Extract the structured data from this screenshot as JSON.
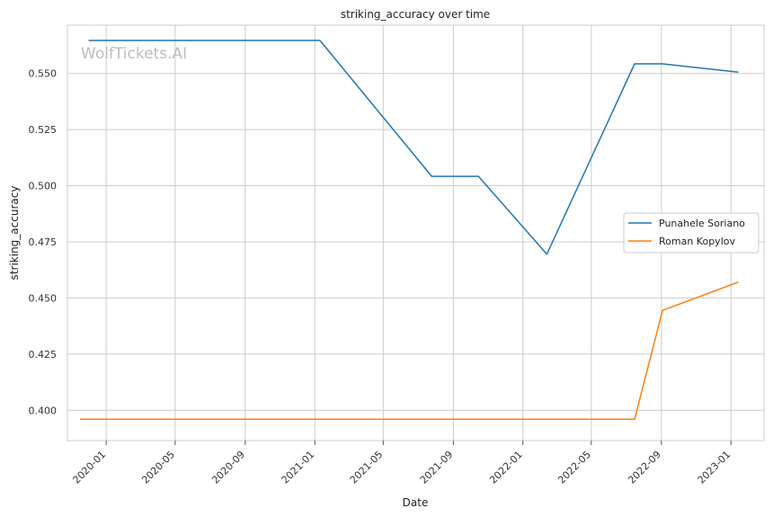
{
  "chart_data": {
    "type": "line",
    "title": "striking_accuracy over time",
    "xlabel": "Date",
    "ylabel": "striking_accuracy",
    "watermark": "WolfTickets.AI",
    "x_ticks": [
      "2020-01",
      "2020-05",
      "2020-09",
      "2021-01",
      "2021-05",
      "2021-09",
      "2022-01",
      "2022-05",
      "2022-09",
      "2023-01"
    ],
    "y_ticks": [
      "0.400",
      "0.425",
      "0.450",
      "0.475",
      "0.500",
      "0.525",
      "0.550"
    ],
    "xlim": [
      "2019-10-25",
      "2023-02-28"
    ],
    "ylim": [
      0.3865,
      0.5715
    ],
    "grid": true,
    "legend_position": "center-right",
    "series": [
      {
        "name": "Punahele Soriano",
        "color": "#1f77b4",
        "points": [
          {
            "x": "2019-12-01",
            "y": 0.5647
          },
          {
            "x": "2021-01-10",
            "y": 0.5647
          },
          {
            "x": "2021-07-25",
            "y": 0.5042
          },
          {
            "x": "2021-10-15",
            "y": 0.5042
          },
          {
            "x": "2022-02-12",
            "y": 0.4695
          },
          {
            "x": "2022-07-16",
            "y": 0.5543
          },
          {
            "x": "2022-09-03",
            "y": 0.5543
          },
          {
            "x": "2023-01-14",
            "y": 0.5506
          }
        ]
      },
      {
        "name": "Roman Kopylov",
        "color": "#ff7f0e",
        "points": [
          {
            "x": "2019-11-16",
            "y": 0.396
          },
          {
            "x": "2022-07-16",
            "y": 0.396
          },
          {
            "x": "2022-09-03",
            "y": 0.4445
          },
          {
            "x": "2023-01-14",
            "y": 0.4571
          }
        ]
      }
    ]
  }
}
